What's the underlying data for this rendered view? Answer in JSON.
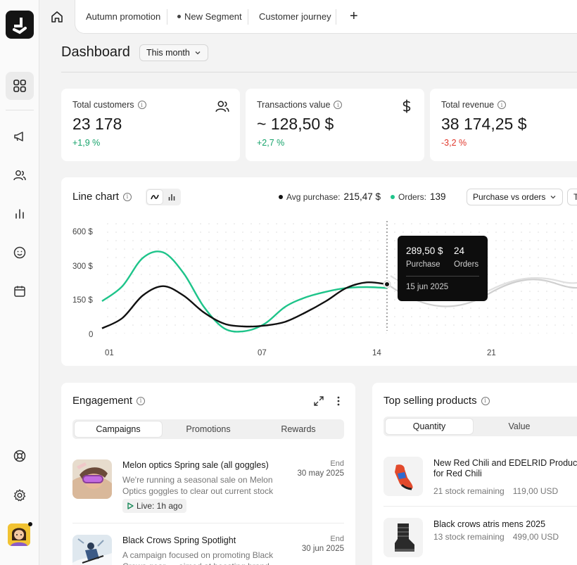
{
  "tabs": [
    {
      "label": "Autumn promotion",
      "dot": false
    },
    {
      "label": "New Segment",
      "dot": true
    },
    {
      "label": "Customer journey",
      "dot": false
    }
  ],
  "add_tab_label": "+",
  "header": {
    "title": "Dashboard",
    "period": "This month"
  },
  "kpis": [
    {
      "label": "Total customers",
      "value": "23 178",
      "change": "+1,9 %",
      "trend": "up",
      "icon": "users-icon"
    },
    {
      "label": "Transactions value",
      "value": "~ 128,50 $",
      "change": "+2,7 %",
      "trend": "up",
      "icon": "dollar-icon"
    },
    {
      "label": "Total revenue",
      "value": "38 174,25 $",
      "change": "-3,2 %",
      "trend": "down",
      "icon": ""
    }
  ],
  "chart_card": {
    "title": "Line chart",
    "legend": [
      {
        "label": "Avg purchase:",
        "value": "215,47 $",
        "color": "#111111"
      },
      {
        "label": "Orders:",
        "value": "139",
        "color": "#1ec48a"
      }
    ],
    "dropdown": "Purchase vs orders",
    "dropdown2": "T",
    "tooltip": {
      "purchase_value": "289,50 $",
      "purchase_label": "Purchase",
      "orders_value": "24",
      "orders_label": "Orders",
      "date": "15 jun 2025"
    }
  },
  "chart_data": {
    "type": "line",
    "x_ticks": [
      "01",
      "07",
      "14",
      "21"
    ],
    "y_ticks": [
      "600 $",
      "300 $",
      "150 $",
      "0"
    ],
    "series": [
      {
        "color": "#111111",
        "x": [
          1,
          2,
          3,
          4,
          5,
          6,
          7,
          8,
          9,
          10,
          11,
          12,
          13,
          14,
          15
        ],
        "y": [
          35,
          90,
          210,
          260,
          210,
          120,
          60,
          45,
          50,
          70,
          120,
          180,
          250,
          280,
          270
        ]
      },
      {
        "color": "#1ec48a",
        "x": [
          1,
          2,
          3,
          4,
          5,
          6,
          7,
          8,
          9,
          10,
          11,
          12,
          13,
          14,
          15
        ],
        "y": [
          180,
          260,
          410,
          440,
          330,
          150,
          35,
          20,
          60,
          150,
          200,
          230,
          250,
          255,
          250
        ]
      }
    ],
    "highlight_x": 15,
    "colors": {
      "purchase": "#111111",
      "orders": "#1ec48a",
      "projection": "#cccccc"
    }
  },
  "engagement": {
    "title": "Engagement",
    "tabs": [
      "Campaigns",
      "Promotions",
      "Rewards"
    ],
    "active_tab": 0,
    "items": [
      {
        "title": "Melon optics Spring sale (all goggles)",
        "desc": "We're running a seasonal sale on Melon Optics goggles to clear out current stock ah...",
        "end_label": "End",
        "end_date": "30 may 2025",
        "live": "Live: 1h ago"
      },
      {
        "title": "Black Crows Spring Spotlight",
        "desc": "A campaign focused on promoting Black Crows gear — aimed at boosting brand visibi...",
        "end_label": "End",
        "end_date": "30 jun 2025",
        "live": ""
      }
    ]
  },
  "top_products": {
    "title": "Top selling products",
    "tabs": [
      "Quantity",
      "Value"
    ],
    "active_tab": 0,
    "items": [
      {
        "name": "New Red Chili and EDELRID Products for Red Chili",
        "stock": "21 stock remaining",
        "price": "119,00 USD"
      },
      {
        "name": "Black crows atris mens 2025",
        "stock": "13 stock remaining",
        "price": "499,00 USD"
      }
    ]
  }
}
